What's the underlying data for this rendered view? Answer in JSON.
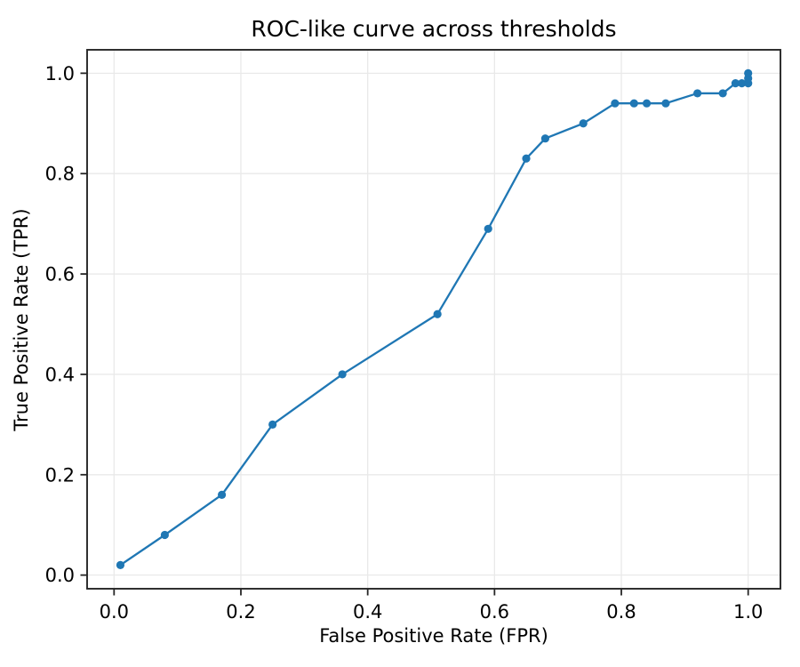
{
  "chart_data": {
    "type": "line",
    "title": "ROC-like curve across thresholds",
    "xlabel": "False Positive Rate (FPR)",
    "ylabel": "True Positive Rate (TPR)",
    "xlim": [
      -0.0425,
      1.0509
    ],
    "ylim": [
      -0.0272,
      1.0467
    ],
    "xticks": [
      0.0,
      0.2,
      0.4,
      0.6,
      0.8,
      1.0
    ],
    "yticks": [
      0.0,
      0.2,
      0.4,
      0.6,
      0.8,
      1.0
    ],
    "xtick_labels": [
      "0.0",
      "0.2",
      "0.4",
      "0.6",
      "0.8",
      "1.0"
    ],
    "ytick_labels": [
      "0.0",
      "0.2",
      "0.4",
      "0.6",
      "0.8",
      "1.0"
    ],
    "grid": true,
    "legend_position": "none",
    "colors": {
      "line": "#1f77b4",
      "grid": "#e9e9e9",
      "spine": "#262626",
      "background": "#ffffff"
    },
    "series": [
      {
        "name": "ROC curve",
        "marker": "circle",
        "x": [
          0.01,
          0.08,
          0.17,
          0.25,
          0.36,
          0.51,
          0.59,
          0.65,
          0.68,
          0.74,
          0.79,
          0.82,
          0.84,
          0.87,
          0.92,
          0.96,
          0.98,
          0.99,
          1.0,
          1.0,
          1.0
        ],
        "y": [
          0.02,
          0.08,
          0.16,
          0.3,
          0.4,
          0.52,
          0.69,
          0.83,
          0.87,
          0.9,
          0.94,
          0.94,
          0.94,
          0.94,
          0.96,
          0.96,
          0.98,
          0.98,
          0.98,
          0.99,
          1.0
        ]
      }
    ]
  }
}
